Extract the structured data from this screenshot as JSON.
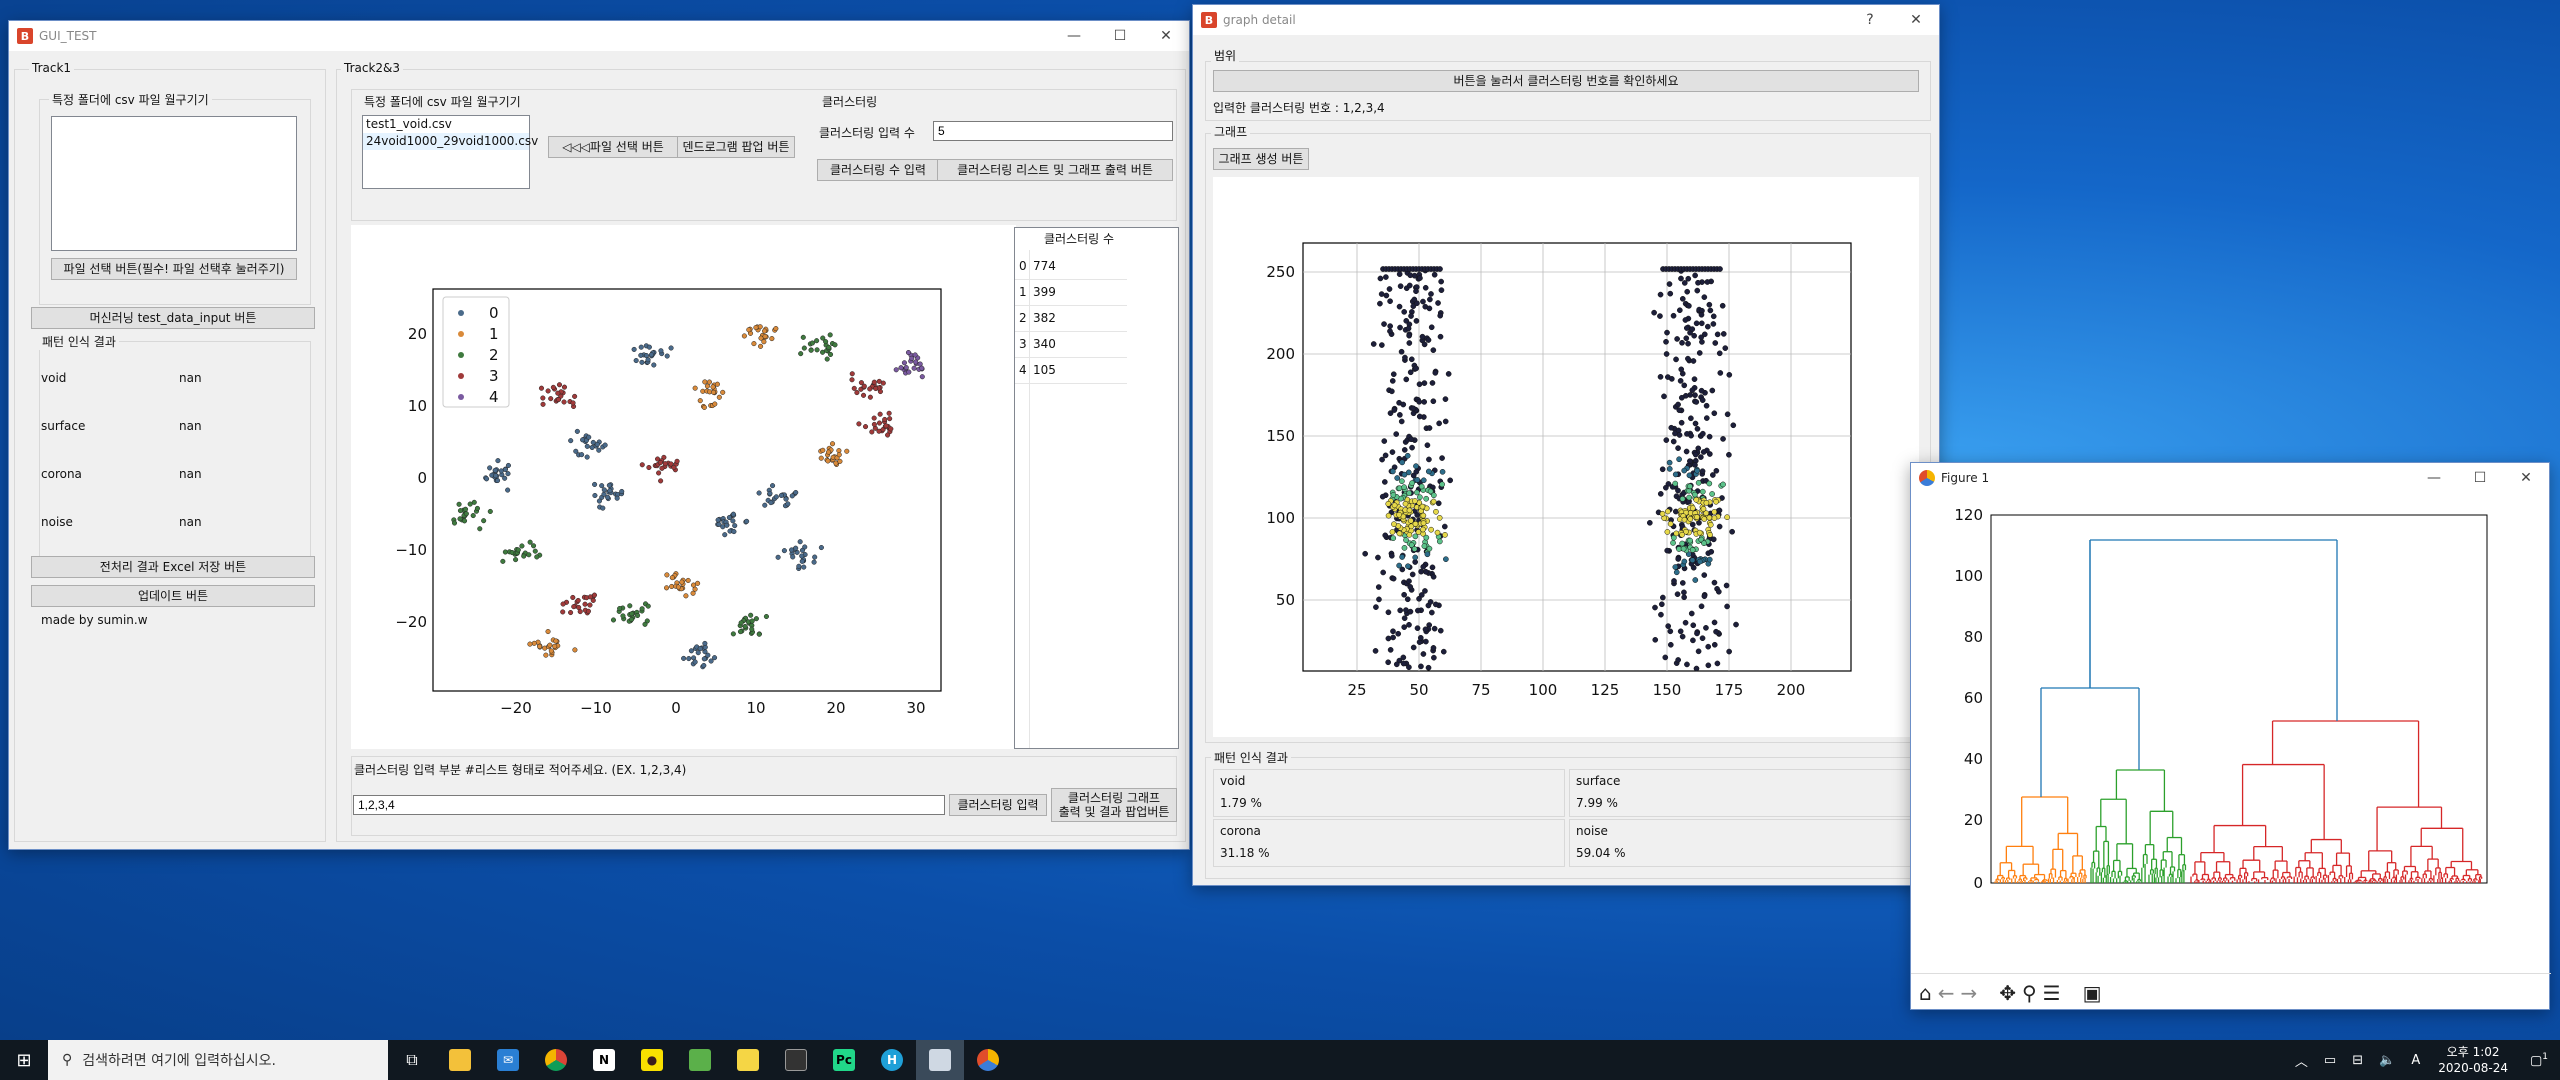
{
  "main_window": {
    "title": "GUI_TEST",
    "track1": {
      "group_label": "Track1",
      "csv_group_label": "특정 폴더에 csv 파일 월구기기",
      "file_select_button": "파일 선택 버튼(필수! 파일 선택후 눌러주기)",
      "ml_button": "머신러닝 test_data_input 버튼",
      "pattern_group_label": "패턴 인식 결과",
      "patterns": [
        {
          "name": "void",
          "value": "nan"
        },
        {
          "name": "surface",
          "value": "nan"
        },
        {
          "name": "corona",
          "value": "nan"
        },
        {
          "name": "noise",
          "value": "nan"
        }
      ],
      "excel_button": "전처리 결과 Excel 저장 버튼",
      "update_button": "업데이트 버튼",
      "credit": "made by sumin.w"
    },
    "track23": {
      "group_label": "Track2&3",
      "csv_group_label": "특정 폴더에 csv 파일 월구기기",
      "files": [
        "test1_void.csv",
        "24void1000_29void1000.csv"
      ],
      "file_select_button": "◁◁◁파일 선택 버튼",
      "dendrogram_button": "덴드로그램 팝업 버튼",
      "clustering_group_label": "클러스터링",
      "cluster_input_label": "클러스터링 입력 수",
      "cluster_input_value": "5",
      "cluster_count_button": "클러스터링 수 입력",
      "cluster_list_button": "클러스터링 리스트 및 그래프 출력 버튼",
      "table_header": "클러스터링 수",
      "table_rows": [
        {
          "index": "0",
          "count": "774"
        },
        {
          "index": "1",
          "count": "399"
        },
        {
          "index": "2",
          "count": "382"
        },
        {
          "index": "3",
          "count": "340"
        },
        {
          "index": "4",
          "count": "105"
        }
      ],
      "cluster_list_label": "클러스터링 입력 부분  #리스트 형태로 적어주세요. (EX. 1,2,3,4)",
      "cluster_list_value": "1,2,3,4",
      "cluster_input_button": "클러스터링 입력",
      "cluster_graph_button_line1": "클러스터링 그래프",
      "cluster_graph_button_line2": "출력 및 결과 팝업버튼",
      "tsne_chart": {
        "legend": [
          "0",
          "1",
          "2",
          "3",
          "4"
        ],
        "colors": [
          "#4a6a8a",
          "#d98a3a",
          "#3f7a3f",
          "#a03a3a",
          "#7a5aa0"
        ],
        "x_ticks": [
          "−20",
          "−10",
          "0",
          "10",
          "20",
          "30"
        ],
        "y_ticks": [
          "20",
          "10",
          "0",
          "−10",
          "−20"
        ]
      }
    }
  },
  "detail_window": {
    "title": "graph detail",
    "range_label": "범위",
    "check_button": "버튼을 눌러서 클러스터링 번호를 확인하세요",
    "input_numbers": "입력한 클러스터링 번호 : 1,2,3,4",
    "graph_label": "그래프",
    "generate_button": "그래프 생성 버튼",
    "pattern_label": "패턴 인식 결과",
    "results": [
      {
        "name": "void",
        "value": "1.79 %"
      },
      {
        "name": "surface",
        "value": "7.99 %"
      },
      {
        "name": "corona",
        "value": "31.18 %"
      },
      {
        "name": "noise",
        "value": "59.04 %"
      }
    ],
    "scatter_chart": {
      "x_ticks": [
        "25",
        "50",
        "75",
        "100",
        "125",
        "150",
        "175",
        "200"
      ],
      "y_ticks": [
        "250",
        "200",
        "150",
        "100",
        "50"
      ]
    }
  },
  "figure_window": {
    "title": "Figure 1",
    "y_ticks": [
      "120",
      "100",
      "80",
      "60",
      "40",
      "20",
      "0"
    ],
    "colors": [
      "#ff7f0e",
      "#2ca02c",
      "#d62728",
      "#1f77b4"
    ],
    "toolbar": [
      "home-icon",
      "back-icon",
      "forward-icon",
      "pan-icon",
      "zoom-icon",
      "configure-icon",
      "save-icon"
    ]
  },
  "taskbar": {
    "search_placeholder": "검색하려면 여기에 입력하십시오.",
    "time": "오후 1:02",
    "date": "2020-08-24",
    "ime": "A",
    "notification_count": "1"
  }
}
